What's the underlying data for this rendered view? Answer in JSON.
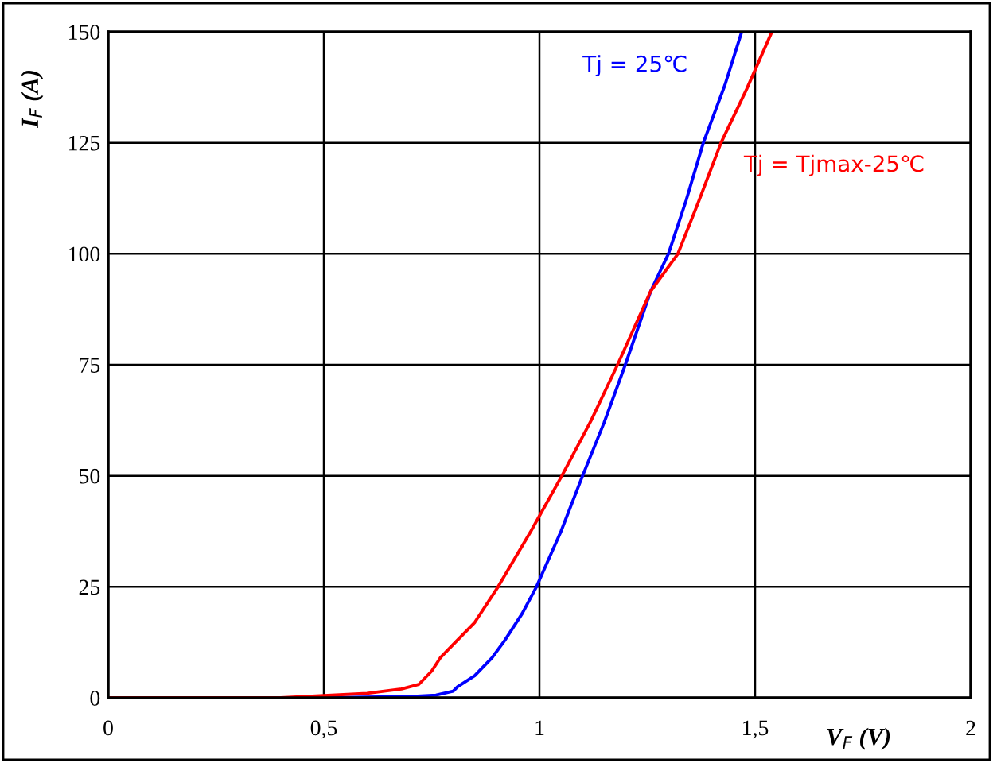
{
  "chart_data": {
    "type": "line",
    "xlabel": "V$_{F}$ (V)",
    "ylabel": "I$_{F}$ (A)",
    "xlim": [
      0,
      2
    ],
    "ylim": [
      0,
      150
    ],
    "xticks": [
      0,
      {
        "value": 0.5,
        "label": "0,5"
      },
      1,
      {
        "value": 1.5,
        "label": "1,5"
      },
      2
    ],
    "yticks": [
      0,
      25,
      50,
      75,
      100,
      125,
      150
    ],
    "grid": true,
    "legend": false,
    "marker": "none",
    "line_style": "solid",
    "series": [
      {
        "name": "Tj = 25℃",
        "color": "#0000ff",
        "x": [
          0,
          0.5,
          0.7,
          0.76,
          0.8,
          0.81,
          0.85,
          0.89,
          0.92,
          0.96,
          0.993,
          1.05,
          1.1,
          1.15,
          1.199,
          1.258,
          1.299,
          1.34,
          1.38,
          1.43,
          1.469
        ],
        "values": [
          0,
          0,
          0.3,
          0.6,
          1.5,
          2.5,
          5,
          9,
          13,
          19,
          25,
          37.5,
          50,
          62,
          75,
          91.6,
          100,
          112,
          125,
          138,
          150
        ]
      },
      {
        "name": "Tj = Tjmax-25℃",
        "color": "#ff0000",
        "x": [
          0,
          0.4,
          0.5,
          0.6,
          0.68,
          0.72,
          0.75,
          0.77,
          0.8,
          0.85,
          0.904,
          0.98,
          1.052,
          1.12,
          1.181,
          1.258,
          1.321,
          1.37,
          1.421,
          1.48,
          1.539
        ],
        "values": [
          0,
          0,
          0.5,
          1,
          2,
          3,
          6,
          9,
          12,
          17,
          25,
          37.5,
          50,
          62.5,
          75,
          91.6,
          100,
          112,
          125,
          137,
          150
        ]
      }
    ]
  }
}
